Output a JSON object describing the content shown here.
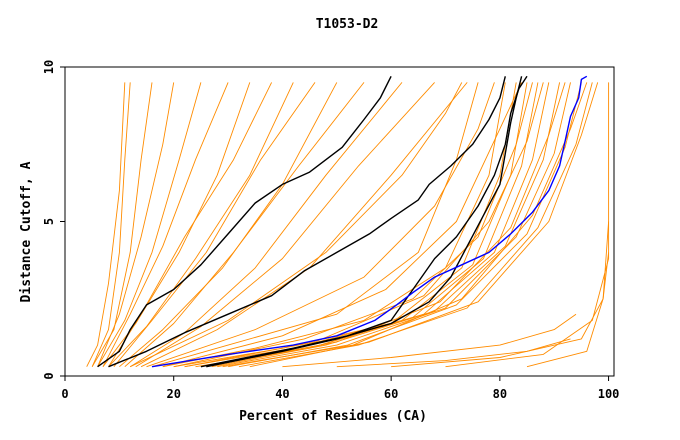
{
  "chart_data": {
    "type": "line",
    "title": "T1053-D2",
    "xlabel": "Percent of Residues (CA)",
    "ylabel": "Distance Cutoff, A",
    "xlim": [
      0,
      101
    ],
    "ylim": [
      0,
      10
    ],
    "x_ticks": [
      {
        "value": 0,
        "label": "0"
      },
      {
        "value": 20,
        "label": "20"
      },
      {
        "value": 40,
        "label": "40"
      },
      {
        "value": 60,
        "label": "60"
      },
      {
        "value": 80,
        "label": "80"
      },
      {
        "value": 100,
        "label": "100"
      }
    ],
    "y_ticks": [
      {
        "value": 0,
        "label": "0"
      },
      {
        "value": 5,
        "label": "5"
      },
      {
        "value": 10,
        "label": "10"
      }
    ],
    "grid": false,
    "colors": {
      "orange": "#ff8c00",
      "black": "#000000",
      "blue": "#0000ff"
    },
    "series": [
      {
        "color": "orange",
        "points": [
          [
            4,
            0.3
          ],
          [
            6,
            1
          ],
          [
            8,
            3
          ],
          [
            10,
            6
          ],
          [
            11,
            9.5
          ]
        ]
      },
      {
        "color": "orange",
        "points": [
          [
            5,
            0.3
          ],
          [
            8,
            1.5
          ],
          [
            10,
            4
          ],
          [
            11,
            7
          ],
          [
            12,
            9.5
          ]
        ]
      },
      {
        "color": "orange",
        "points": [
          [
            5,
            0.3
          ],
          [
            9,
            1.5
          ],
          [
            12,
            4
          ],
          [
            14,
            7
          ],
          [
            16,
            9.5
          ]
        ]
      },
      {
        "color": "orange",
        "points": [
          [
            6,
            0.3
          ],
          [
            10,
            2
          ],
          [
            14,
            4.5
          ],
          [
            18,
            7.5
          ],
          [
            20,
            9.5
          ]
        ]
      },
      {
        "color": "orange",
        "points": [
          [
            6,
            0.3
          ],
          [
            11,
            1.8
          ],
          [
            16,
            4
          ],
          [
            21,
            7
          ],
          [
            25,
            9.5
          ]
        ]
      },
      {
        "color": "orange",
        "points": [
          [
            7,
            0.3
          ],
          [
            12,
            2
          ],
          [
            18,
            4.2
          ],
          [
            24,
            7
          ],
          [
            30,
            9.5
          ]
        ]
      },
      {
        "color": "orange",
        "points": [
          [
            7,
            0.3
          ],
          [
            13,
            1.7
          ],
          [
            21,
            4
          ],
          [
            28,
            6.5
          ],
          [
            34,
            9.5
          ]
        ]
      },
      {
        "color": "orange",
        "points": [
          [
            8,
            0.3
          ],
          [
            14,
            2
          ],
          [
            22,
            4.5
          ],
          [
            31,
            7
          ],
          [
            38,
            9.5
          ]
        ]
      },
      {
        "color": "orange",
        "points": [
          [
            8,
            0.3
          ],
          [
            15,
            1.6
          ],
          [
            24,
            3.8
          ],
          [
            34,
            6.5
          ],
          [
            42,
            9.5
          ]
        ]
      },
      {
        "color": "orange",
        "points": [
          [
            9,
            0.3
          ],
          [
            16,
            1.8
          ],
          [
            26,
            4
          ],
          [
            36,
            7
          ],
          [
            46,
            9.5
          ]
        ]
      },
      {
        "color": "orange",
        "points": [
          [
            10,
            0.3
          ],
          [
            18,
            1.5
          ],
          [
            29,
            3.5
          ],
          [
            40,
            6.2
          ],
          [
            50,
            9.5
          ]
        ]
      },
      {
        "color": "orange",
        "points": [
          [
            11,
            0.3
          ],
          [
            20,
            1.7
          ],
          [
            31,
            4
          ],
          [
            43,
            6.8
          ],
          [
            55,
            9.5
          ]
        ]
      },
      {
        "color": "orange",
        "points": [
          [
            12,
            0.3
          ],
          [
            22,
            1.4
          ],
          [
            35,
            3.5
          ],
          [
            48,
            6.5
          ],
          [
            62,
            9.5
          ]
        ]
      },
      {
        "color": "orange",
        "points": [
          [
            13,
            0.3
          ],
          [
            25,
            1.6
          ],
          [
            40,
            3.8
          ],
          [
            54,
            6.8
          ],
          [
            68,
            9.5
          ]
        ]
      },
      {
        "color": "orange",
        "points": [
          [
            14,
            0.3
          ],
          [
            28,
            1.5
          ],
          [
            45,
            3.5
          ],
          [
            60,
            6.5
          ],
          [
            74,
            9.5
          ]
        ]
      },
      {
        "color": "orange",
        "points": [
          [
            16,
            0.3
          ],
          [
            30,
            1
          ],
          [
            50,
            2
          ],
          [
            65,
            4
          ],
          [
            72,
            7
          ],
          [
            76,
            9.5
          ]
        ]
      },
      {
        "color": "orange",
        "points": [
          [
            18,
            0.3
          ],
          [
            35,
            0.9
          ],
          [
            55,
            1.8
          ],
          [
            70,
            3.5
          ],
          [
            78,
            6.5
          ],
          [
            81,
            9.5
          ]
        ]
      },
      {
        "color": "orange",
        "points": [
          [
            20,
            0.3
          ],
          [
            40,
            0.9
          ],
          [
            60,
            1.7
          ],
          [
            73,
            3.5
          ],
          [
            80,
            6.5
          ],
          [
            83,
            9.5
          ]
        ]
      },
      {
        "color": "orange",
        "points": [
          [
            22,
            0.3
          ],
          [
            42,
            0.9
          ],
          [
            62,
            1.8
          ],
          [
            75,
            3.6
          ],
          [
            82,
            6.5
          ],
          [
            85,
            9.5
          ]
        ]
      },
      {
        "color": "orange",
        "points": [
          [
            24,
            0.3
          ],
          [
            45,
            0.9
          ],
          [
            64,
            1.9
          ],
          [
            77,
            3.8
          ],
          [
            84,
            6.8
          ],
          [
            87,
            9.5
          ]
        ]
      },
      {
        "color": "orange",
        "points": [
          [
            25,
            0.3
          ],
          [
            47,
            1
          ],
          [
            66,
            2
          ],
          [
            79,
            4
          ],
          [
            86,
            7
          ],
          [
            89,
            9.5
          ]
        ]
      },
      {
        "color": "orange",
        "points": [
          [
            27,
            0.3
          ],
          [
            48,
            1
          ],
          [
            68,
            2.1
          ],
          [
            81,
            4.2
          ],
          [
            88,
            7
          ],
          [
            91,
            9.5
          ]
        ]
      },
      {
        "color": "orange",
        "points": [
          [
            28,
            0.3
          ],
          [
            50,
            1
          ],
          [
            70,
            2.2
          ],
          [
            83,
            4.5
          ],
          [
            90,
            7.2
          ],
          [
            93,
            9.5
          ]
        ]
      },
      {
        "color": "orange",
        "points": [
          [
            30,
            0.3
          ],
          [
            52,
            1
          ],
          [
            72,
            2.3
          ],
          [
            85,
            4.6
          ],
          [
            92,
            7.4
          ],
          [
            95,
            9.5
          ]
        ]
      },
      {
        "color": "orange",
        "points": [
          [
            32,
            0.3
          ],
          [
            54,
            1
          ],
          [
            74,
            2.2
          ],
          [
            87,
            4.8
          ],
          [
            94,
            7.5
          ],
          [
            97,
            9.5
          ]
        ]
      },
      {
        "color": "orange",
        "points": [
          [
            34,
            0.3
          ],
          [
            56,
            1.1
          ],
          [
            76,
            2.4
          ],
          [
            89,
            5
          ],
          [
            95,
            7.8
          ],
          [
            98,
            9.5
          ]
        ]
      },
      {
        "color": "orange",
        "points": [
          [
            20,
            0.3
          ],
          [
            44,
            1.2
          ],
          [
            64,
            2.5
          ],
          [
            76,
            4.5
          ],
          [
            83,
            7.5
          ],
          [
            86,
            9.5
          ]
        ]
      },
      {
        "color": "orange",
        "points": [
          [
            22,
            0.3
          ],
          [
            46,
            1.1
          ],
          [
            66,
            2.6
          ],
          [
            78,
            5
          ],
          [
            85,
            7.6
          ],
          [
            88,
            9.5
          ]
        ]
      },
      {
        "color": "orange",
        "points": [
          [
            15,
            0.3
          ],
          [
            35,
            1.5
          ],
          [
            55,
            3.2
          ],
          [
            68,
            5.5
          ],
          [
            76,
            8
          ],
          [
            79,
            9.5
          ]
        ]
      },
      {
        "color": "orange",
        "points": [
          [
            12,
            0.3
          ],
          [
            30,
            1.8
          ],
          [
            48,
            4
          ],
          [
            62,
            6.5
          ],
          [
            70,
            8.5
          ],
          [
            73,
            9.5
          ]
        ]
      },
      {
        "color": "orange",
        "points": [
          [
            40,
            0.3
          ],
          [
            60,
            0.6
          ],
          [
            80,
            1
          ],
          [
            90,
            1.5
          ],
          [
            94,
            2
          ]
        ]
      },
      {
        "color": "orange",
        "points": [
          [
            50,
            0.3
          ],
          [
            70,
            0.5
          ],
          [
            85,
            0.8
          ],
          [
            93,
            1.2
          ]
        ]
      },
      {
        "color": "orange",
        "points": [
          [
            60,
            0.3
          ],
          [
            80,
            0.6
          ],
          [
            95,
            1.2
          ],
          [
            99,
            2.5
          ],
          [
            100,
            4
          ]
        ]
      },
      {
        "color": "orange",
        "points": [
          [
            70,
            0.3
          ],
          [
            88,
            0.7
          ],
          [
            97,
            1.8
          ],
          [
            100,
            3.8
          ],
          [
            100,
            9.5
          ]
        ]
      },
      {
        "color": "orange",
        "points": [
          [
            85,
            0.3
          ],
          [
            96,
            0.8
          ],
          [
            99,
            2.5
          ],
          [
            100,
            5
          ]
        ]
      },
      {
        "color": "orange",
        "points": [
          [
            26,
            0.3
          ],
          [
            50,
            1.1
          ],
          [
            69,
            2.4
          ],
          [
            82,
            4.8
          ],
          [
            89,
            7.8
          ],
          [
            92,
            9.5
          ]
        ]
      },
      {
        "color": "orange",
        "points": [
          [
            29,
            0.3
          ],
          [
            53,
            1
          ],
          [
            73,
            2.5
          ],
          [
            86,
            5.2
          ],
          [
            93,
            8
          ],
          [
            96,
            9.5
          ]
        ]
      },
      {
        "color": "orange",
        "points": [
          [
            18,
            0.3
          ],
          [
            40,
            1.3
          ],
          [
            59,
            2.8
          ],
          [
            72,
            5
          ],
          [
            80,
            8
          ],
          [
            84,
            9.5
          ]
        ]
      },
      {
        "color": "black",
        "points": [
          [
            6,
            0.3
          ],
          [
            10,
            0.8
          ],
          [
            12,
            1.5
          ],
          [
            15,
            2.3
          ],
          [
            20,
            2.8
          ],
          [
            25,
            3.6
          ],
          [
            30,
            4.6
          ],
          [
            35,
            5.6
          ],
          [
            40,
            6.2
          ],
          [
            45,
            6.6
          ],
          [
            51,
            7.4
          ],
          [
            55,
            8.3
          ],
          [
            58,
            9.0
          ],
          [
            60,
            9.7
          ]
        ]
      },
      {
        "color": "black",
        "points": [
          [
            8,
            0.3
          ],
          [
            15,
            0.8
          ],
          [
            22,
            1.4
          ],
          [
            30,
            2
          ],
          [
            38,
            2.6
          ],
          [
            44,
            3.4
          ],
          [
            50,
            4
          ],
          [
            56,
            4.6
          ],
          [
            60,
            5.1
          ],
          [
            65,
            5.7
          ],
          [
            67,
            6.2
          ],
          [
            71,
            6.8
          ],
          [
            75,
            7.5
          ],
          [
            78,
            8.3
          ],
          [
            80,
            9
          ],
          [
            81,
            9.7
          ]
        ]
      },
      {
        "color": "black",
        "points": [
          [
            26,
            0.3
          ],
          [
            40,
            0.8
          ],
          [
            50,
            1.2
          ],
          [
            60,
            1.7
          ],
          [
            67,
            2.4
          ],
          [
            71,
            3.2
          ],
          [
            74,
            4.2
          ],
          [
            77,
            5.2
          ],
          [
            80,
            6.2
          ],
          [
            81,
            7.2
          ],
          [
            82,
            8.2
          ],
          [
            83,
            9
          ],
          [
            84,
            9.7
          ]
        ]
      },
      {
        "color": "black",
        "points": [
          [
            25,
            0.3
          ],
          [
            42,
            0.9
          ],
          [
            52,
            1.3
          ],
          [
            60,
            1.8
          ],
          [
            64,
            2.8
          ],
          [
            68,
            3.8
          ],
          [
            72,
            4.5
          ],
          [
            76,
            5.5
          ],
          [
            79,
            6.5
          ],
          [
            81,
            7.5
          ],
          [
            82,
            8.5
          ],
          [
            83.5,
            9.3
          ],
          [
            85,
            9.7
          ]
        ]
      },
      {
        "color": "blue",
        "points": [
          [
            16,
            0.3
          ],
          [
            30,
            0.7
          ],
          [
            42,
            1
          ],
          [
            50,
            1.3
          ],
          [
            57,
            1.8
          ],
          [
            61,
            2.3
          ],
          [
            64,
            2.7
          ],
          [
            68,
            3.2
          ],
          [
            73,
            3.6
          ],
          [
            78,
            4
          ],
          [
            82,
            4.6
          ],
          [
            86,
            5.3
          ],
          [
            89,
            6
          ],
          [
            91,
            6.8
          ],
          [
            92,
            7.6
          ],
          [
            93,
            8.4
          ],
          [
            94.5,
            9
          ],
          [
            95,
            9.6
          ],
          [
            96,
            9.7
          ]
        ]
      }
    ]
  }
}
